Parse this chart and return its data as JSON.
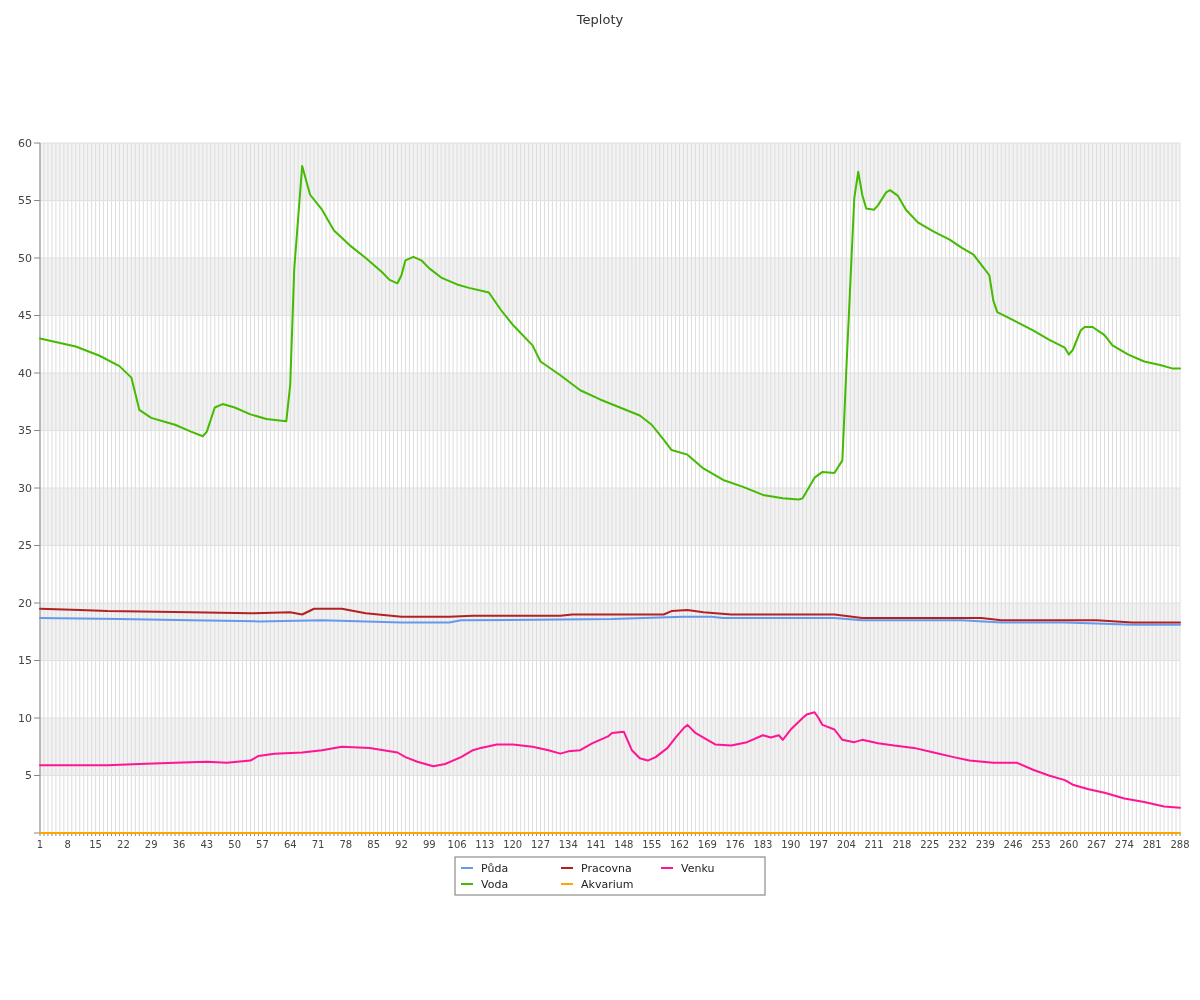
{
  "chart_data": {
    "type": "line",
    "title": "Teploty",
    "xlim": [
      1,
      288
    ],
    "ylim": [
      0,
      60
    ],
    "yticks": [
      {
        "value": 0,
        "label": null
      },
      5,
      10,
      15,
      20,
      25,
      30,
      35,
      40,
      45,
      50,
      55,
      60
    ],
    "xticks": [
      1,
      {
        "value": 2,
        "label": null
      },
      {
        "value": 3,
        "label": null
      },
      {
        "value": 4,
        "label": null
      },
      {
        "value": 5,
        "label": null
      },
      {
        "value": 6,
        "label": null
      },
      {
        "value": 7,
        "label": null
      },
      8,
      {
        "value": 9,
        "label": null
      },
      {
        "value": 10,
        "label": null
      },
      {
        "value": 11,
        "label": null
      },
      {
        "value": 12,
        "label": null
      },
      {
        "value": 13,
        "label": null
      },
      {
        "value": 14,
        "label": null
      },
      15,
      {
        "value": 16,
        "label": null
      },
      {
        "value": 17,
        "label": null
      },
      {
        "value": 18,
        "label": null
      },
      {
        "value": 19,
        "label": null
      },
      {
        "value": 20,
        "label": null
      },
      {
        "value": 21,
        "label": null
      },
      22,
      {
        "value": 23,
        "label": null
      },
      {
        "value": 24,
        "label": null
      },
      {
        "value": 25,
        "label": null
      },
      {
        "value": 26,
        "label": null
      },
      {
        "value": 27,
        "label": null
      },
      {
        "value": 28,
        "label": null
      },
      29,
      {
        "value": 30,
        "label": null
      },
      {
        "value": 31,
        "label": null
      },
      {
        "value": 32,
        "label": null
      },
      {
        "value": 33,
        "label": null
      },
      {
        "value": 34,
        "label": null
      },
      {
        "value": 35,
        "label": null
      },
      36,
      {
        "value": 37,
        "label": null
      },
      {
        "value": 38,
        "label": null
      },
      {
        "value": 39,
        "label": null
      },
      {
        "value": 40,
        "label": null
      },
      {
        "value": 41,
        "label": null
      },
      {
        "value": 42,
        "label": null
      },
      43,
      {
        "value": 44,
        "label": null
      },
      {
        "value": 45,
        "label": null
      },
      {
        "value": 46,
        "label": null
      },
      {
        "value": 47,
        "label": null
      },
      {
        "value": 48,
        "label": null
      },
      {
        "value": 49,
        "label": null
      },
      50,
      {
        "value": 51,
        "label": null
      },
      {
        "value": 52,
        "label": null
      },
      {
        "value": 53,
        "label": null
      },
      {
        "value": 54,
        "label": null
      },
      {
        "value": 55,
        "label": null
      },
      {
        "value": 56,
        "label": null
      },
      57,
      {
        "value": 58,
        "label": null
      },
      {
        "value": 59,
        "label": null
      },
      {
        "value": 60,
        "label": null
      },
      {
        "value": 61,
        "label": null
      },
      {
        "value": 62,
        "label": null
      },
      {
        "value": 63,
        "label": null
      },
      64,
      {
        "value": 65,
        "label": null
      },
      {
        "value": 66,
        "label": null
      },
      {
        "value": 67,
        "label": null
      },
      {
        "value": 68,
        "label": null
      },
      {
        "value": 69,
        "label": null
      },
      {
        "value": 70,
        "label": null
      },
      71,
      {
        "value": 72,
        "label": null
      },
      {
        "value": 73,
        "label": null
      },
      {
        "value": 74,
        "label": null
      },
      {
        "value": 75,
        "label": null
      },
      {
        "value": 76,
        "label": null
      },
      {
        "value": 77,
        "label": null
      },
      78,
      {
        "value": 79,
        "label": null
      },
      {
        "value": 80,
        "label": null
      },
      {
        "value": 81,
        "label": null
      },
      {
        "value": 82,
        "label": null
      },
      {
        "value": 83,
        "label": null
      },
      {
        "value": 84,
        "label": null
      },
      85,
      {
        "value": 86,
        "label": null
      },
      {
        "value": 87,
        "label": null
      },
      {
        "value": 88,
        "label": null
      },
      {
        "value": 89,
        "label": null
      },
      {
        "value": 90,
        "label": null
      },
      {
        "value": 91,
        "label": null
      },
      92,
      {
        "value": 93,
        "label": null
      },
      {
        "value": 94,
        "label": null
      },
      {
        "value": 95,
        "label": null
      },
      {
        "value": 96,
        "label": null
      },
      {
        "value": 97,
        "label": null
      },
      {
        "value": 98,
        "label": null
      },
      99,
      {
        "value": 100,
        "label": null
      },
      {
        "value": 101,
        "label": null
      },
      {
        "value": 102,
        "label": null
      },
      {
        "value": 103,
        "label": null
      },
      {
        "value": 104,
        "label": null
      },
      {
        "value": 105,
        "label": null
      },
      106,
      {
        "value": 107,
        "label": null
      },
      {
        "value": 108,
        "label": null
      },
      {
        "value": 109,
        "label": null
      },
      {
        "value": 110,
        "label": null
      },
      {
        "value": 111,
        "label": null
      },
      {
        "value": 112,
        "label": null
      },
      113,
      {
        "value": 114,
        "label": null
      },
      {
        "value": 115,
        "label": null
      },
      {
        "value": 116,
        "label": null
      },
      {
        "value": 117,
        "label": null
      },
      {
        "value": 118,
        "label": null
      },
      {
        "value": 119,
        "label": null
      },
      120,
      {
        "value": 121,
        "label": null
      },
      {
        "value": 122,
        "label": null
      },
      {
        "value": 123,
        "label": null
      },
      {
        "value": 124,
        "label": null
      },
      {
        "value": 125,
        "label": null
      },
      {
        "value": 126,
        "label": null
      },
      127,
      {
        "value": 128,
        "label": null
      },
      {
        "value": 129,
        "label": null
      },
      {
        "value": 130,
        "label": null
      },
      {
        "value": 131,
        "label": null
      },
      {
        "value": 132,
        "label": null
      },
      {
        "value": 133,
        "label": null
      },
      134,
      {
        "value": 135,
        "label": null
      },
      {
        "value": 136,
        "label": null
      },
      {
        "value": 137,
        "label": null
      },
      {
        "value": 138,
        "label": null
      },
      {
        "value": 139,
        "label": null
      },
      {
        "value": 140,
        "label": null
      },
      141,
      {
        "value": 142,
        "label": null
      },
      {
        "value": 143,
        "label": null
      },
      {
        "value": 144,
        "label": null
      },
      {
        "value": 145,
        "label": null
      },
      {
        "value": 146,
        "label": null
      },
      {
        "value": 147,
        "label": null
      },
      148,
      {
        "value": 149,
        "label": null
      },
      {
        "value": 150,
        "label": null
      },
      {
        "value": 151,
        "label": null
      },
      {
        "value": 152,
        "label": null
      },
      {
        "value": 153,
        "label": null
      },
      {
        "value": 154,
        "label": null
      },
      155,
      {
        "value": 156,
        "label": null
      },
      {
        "value": 157,
        "label": null
      },
      {
        "value": 158,
        "label": null
      },
      {
        "value": 159,
        "label": null
      },
      {
        "value": 160,
        "label": null
      },
      {
        "value": 161,
        "label": null
      },
      162,
      {
        "value": 163,
        "label": null
      },
      {
        "value": 164,
        "label": null
      },
      {
        "value": 165,
        "label": null
      },
      {
        "value": 166,
        "label": null
      },
      {
        "value": 167,
        "label": null
      },
      {
        "value": 168,
        "label": null
      },
      169,
      {
        "value": 170,
        "label": null
      },
      {
        "value": 171,
        "label": null
      },
      {
        "value": 172,
        "label": null
      },
      {
        "value": 173,
        "label": null
      },
      {
        "value": 174,
        "label": null
      },
      {
        "value": 175,
        "label": null
      },
      176,
      {
        "value": 177,
        "label": null
      },
      {
        "value": 178,
        "label": null
      },
      {
        "value": 179,
        "label": null
      },
      {
        "value": 180,
        "label": null
      },
      {
        "value": 181,
        "label": null
      },
      {
        "value": 182,
        "label": null
      },
      183,
      {
        "value": 184,
        "label": null
      },
      {
        "value": 185,
        "label": null
      },
      {
        "value": 186,
        "label": null
      },
      {
        "value": 187,
        "label": null
      },
      {
        "value": 188,
        "label": null
      },
      {
        "value": 189,
        "label": null
      },
      190,
      {
        "value": 191,
        "label": null
      },
      {
        "value": 192,
        "label": null
      },
      {
        "value": 193,
        "label": null
      },
      {
        "value": 194,
        "label": null
      },
      {
        "value": 195,
        "label": null
      },
      {
        "value": 196,
        "label": null
      },
      197,
      {
        "value": 198,
        "label": null
      },
      {
        "value": 199,
        "label": null
      },
      {
        "value": 200,
        "label": null
      },
      {
        "value": 201,
        "label": null
      },
      {
        "value": 202,
        "label": null
      },
      {
        "value": 203,
        "label": null
      },
      204,
      {
        "value": 205,
        "label": null
      },
      {
        "value": 206,
        "label": null
      },
      {
        "value": 207,
        "label": null
      },
      {
        "value": 208,
        "label": null
      },
      {
        "value": 209,
        "label": null
      },
      {
        "value": 210,
        "label": null
      },
      211,
      {
        "value": 212,
        "label": null
      },
      {
        "value": 213,
        "label": null
      },
      {
        "value": 214,
        "label": null
      },
      {
        "value": 215,
        "label": null
      },
      {
        "value": 216,
        "label": null
      },
      {
        "value": 217,
        "label": null
      },
      218,
      {
        "value": 219,
        "label": null
      },
      {
        "value": 220,
        "label": null
      },
      {
        "value": 221,
        "label": null
      },
      {
        "value": 222,
        "label": null
      },
      {
        "value": 223,
        "label": null
      },
      {
        "value": 224,
        "label": null
      },
      225,
      {
        "value": 226,
        "label": null
      },
      {
        "value": 227,
        "label": null
      },
      {
        "value": 228,
        "label": null
      },
      {
        "value": 229,
        "label": null
      },
      {
        "value": 230,
        "label": null
      },
      {
        "value": 231,
        "label": null
      },
      232,
      {
        "value": 233,
        "label": null
      },
      {
        "value": 234,
        "label": null
      },
      {
        "value": 235,
        "label": null
      },
      {
        "value": 236,
        "label": null
      },
      {
        "value": 237,
        "label": null
      },
      {
        "value": 238,
        "label": null
      },
      239,
      {
        "value": 240,
        "label": null
      },
      {
        "value": 241,
        "label": null
      },
      {
        "value": 242,
        "label": null
      },
      {
        "value": 243,
        "label": null
      },
      {
        "value": 244,
        "label": null
      },
      {
        "value": 245,
        "label": null
      },
      246,
      {
        "value": 247,
        "label": null
      },
      {
        "value": 248,
        "label": null
      },
      {
        "value": 249,
        "label": null
      },
      {
        "value": 250,
        "label": null
      },
      {
        "value": 251,
        "label": null
      },
      {
        "value": 252,
        "label": null
      },
      253,
      {
        "value": 254,
        "label": null
      },
      {
        "value": 255,
        "label": null
      },
      {
        "value": 256,
        "label": null
      },
      {
        "value": 257,
        "label": null
      },
      {
        "value": 258,
        "label": null
      },
      {
        "value": 259,
        "label": null
      },
      260,
      {
        "value": 261,
        "label": null
      },
      {
        "value": 262,
        "label": null
      },
      {
        "value": 263,
        "label": null
      },
      {
        "value": 264,
        "label": null
      },
      {
        "value": 265,
        "label": null
      },
      {
        "value": 266,
        "label": null
      },
      267,
      {
        "value": 268,
        "label": null
      },
      {
        "value": 269,
        "label": null
      },
      {
        "value": 270,
        "label": null
      },
      {
        "value": 271,
        "label": null
      },
      {
        "value": 272,
        "label": null
      },
      {
        "value": 273,
        "label": null
      },
      274,
      {
        "value": 275,
        "label": null
      },
      {
        "value": 276,
        "label": null
      },
      {
        "value": 277,
        "label": null
      },
      {
        "value": 278,
        "label": null
      },
      {
        "value": 279,
        "label": null
      },
      {
        "value": 280,
        "label": null
      },
      281,
      {
        "value": 282,
        "label": null
      },
      {
        "value": 283,
        "label": null
      },
      {
        "value": 284,
        "label": null
      },
      {
        "value": 285,
        "label": null
      },
      {
        "value": 286,
        "label": null
      },
      {
        "value": 287,
        "label": null
      },
      288
    ],
    "grid": true,
    "legend": "bottom",
    "line_style": "solid",
    "marker": "none",
    "series": [
      {
        "name": "Půda",
        "color": "#6699ee",
        "x": [
          1,
          21,
          39,
          56,
          72,
          92,
          94,
          104,
          107,
          145,
          163,
          170,
          173,
          201,
          208,
          233,
          243,
          259,
          269,
          276,
          288
        ],
        "values": [
          18.7,
          18.6,
          18.5,
          18.4,
          18.5,
          18.3,
          18.3,
          18.3,
          18.5,
          18.6,
          18.8,
          18.8,
          18.7,
          18.7,
          18.5,
          18.5,
          18.3,
          18.3,
          18.2,
          18.1,
          18.1
        ]
      },
      {
        "name": "Voda",
        "color": "#44bb00",
        "x": [
          1,
          10,
          16,
          21,
          24,
          26,
          29,
          33,
          35,
          39,
          42,
          43,
          45,
          47,
          50,
          54,
          58,
          63,
          64,
          65,
          67,
          69,
          72,
          75,
          79,
          83,
          87,
          89,
          91,
          92,
          93,
          95,
          97,
          99,
          102,
          106,
          109,
          114,
          117,
          120,
          125,
          127,
          132,
          137,
          142,
          147,
          152,
          155,
          158,
          160,
          164,
          168,
          173,
          178,
          183,
          188,
          192,
          193,
          196,
          198,
          201,
          203,
          204,
          206,
          207,
          208,
          209,
          211,
          212,
          214,
          215,
          217,
          219,
          222,
          226,
          230,
          233,
          236,
          238,
          240,
          241,
          242,
          246,
          251,
          255,
          259,
          260,
          261,
          263,
          264,
          266,
          269,
          271,
          275,
          279,
          283,
          286,
          288
        ],
        "values": [
          43.0,
          42.3,
          41.5,
          40.6,
          39.6,
          36.8,
          36.1,
          35.7,
          35.5,
          34.9,
          34.5,
          34.9,
          37.0,
          37.3,
          37.0,
          36.4,
          36.0,
          35.8,
          39.0,
          49.0,
          58.0,
          55.5,
          54.2,
          52.4,
          51.1,
          50.0,
          48.8,
          48.1,
          47.8,
          48.5,
          49.8,
          50.1,
          49.8,
          49.1,
          48.3,
          47.7,
          47.4,
          47.0,
          45.5,
          44.2,
          42.4,
          41.0,
          39.8,
          38.5,
          37.7,
          37.0,
          36.3,
          35.5,
          34.2,
          33.3,
          32.9,
          31.7,
          30.7,
          30.1,
          29.4,
          29.1,
          29.0,
          29.1,
          30.9,
          31.4,
          31.3,
          32.4,
          40.3,
          55.2,
          57.5,
          55.5,
          54.3,
          54.2,
          54.6,
          55.7,
          55.9,
          55.4,
          54.2,
          53.1,
          52.3,
          51.6,
          50.9,
          50.3,
          49.4,
          48.5,
          46.3,
          45.3,
          44.6,
          43.7,
          42.9,
          42.2,
          41.6,
          42.0,
          43.7,
          44.0,
          44.0,
          43.3,
          42.4,
          41.6,
          41.0,
          40.7,
          40.4,
          40.4
        ]
      },
      {
        "name": "Pracovna",
        "color": "#b22222",
        "x": [
          1,
          11,
          18,
          39,
          54,
          64,
          67,
          70,
          77,
          83,
          92,
          104,
          110,
          132,
          135,
          158,
          160,
          164,
          168,
          175,
          201,
          208,
          238,
          243,
          267,
          276,
          288
        ],
        "values": [
          19.5,
          19.4,
          19.3,
          19.2,
          19.1,
          19.2,
          19.0,
          19.5,
          19.5,
          19.1,
          18.8,
          18.8,
          18.9,
          18.9,
          19.0,
          19.0,
          19.3,
          19.4,
          19.2,
          19.0,
          19.0,
          18.7,
          18.7,
          18.5,
          18.5,
          18.3,
          18.3
        ]
      },
      {
        "name": "Akvarium",
        "color": "#ffa500",
        "x": [
          1,
          288
        ],
        "values": [
          0,
          0
        ]
      },
      {
        "name": "Venku",
        "color": "#ff1493",
        "x": [
          1,
          18,
          26,
          35,
          43,
          48,
          54,
          56,
          60,
          67,
          72,
          77,
          84,
          91,
          93,
          96,
          98,
          100,
          103,
          107,
          110,
          112,
          116,
          120,
          125,
          129,
          132,
          134,
          137,
          140,
          144,
          145,
          148,
          150,
          152,
          154,
          156,
          159,
          161,
          163,
          164,
          166,
          169,
          171,
          175,
          179,
          183,
          185,
          187,
          188,
          190,
          193,
          194,
          196,
          197,
          198,
          201,
          203,
          206,
          208,
          212,
          216,
          221,
          226,
          231,
          235,
          241,
          247,
          251,
          255,
          259,
          261,
          265,
          269,
          274,
          279,
          284,
          288
        ],
        "values": [
          5.9,
          5.9,
          6.0,
          6.1,
          6.2,
          6.1,
          6.3,
          6.7,
          6.9,
          7.0,
          7.2,
          7.5,
          7.4,
          7.0,
          6.6,
          6.2,
          6.0,
          5.8,
          6.0,
          6.6,
          7.2,
          7.4,
          7.7,
          7.7,
          7.5,
          7.2,
          6.9,
          7.1,
          7.2,
          7.8,
          8.4,
          8.7,
          8.8,
          7.2,
          6.5,
          6.3,
          6.6,
          7.4,
          8.3,
          9.1,
          9.4,
          8.7,
          8.1,
          7.7,
          7.6,
          7.9,
          8.5,
          8.3,
          8.5,
          8.1,
          9.0,
          10.0,
          10.3,
          10.5,
          10.0,
          9.4,
          9.0,
          8.1,
          7.9,
          8.1,
          7.8,
          7.6,
          7.4,
          7.0,
          6.6,
          6.3,
          6.1,
          6.1,
          5.5,
          5.0,
          4.6,
          4.2,
          3.8,
          3.5,
          3.0,
          2.7,
          2.3,
          2.2
        ]
      }
    ]
  }
}
